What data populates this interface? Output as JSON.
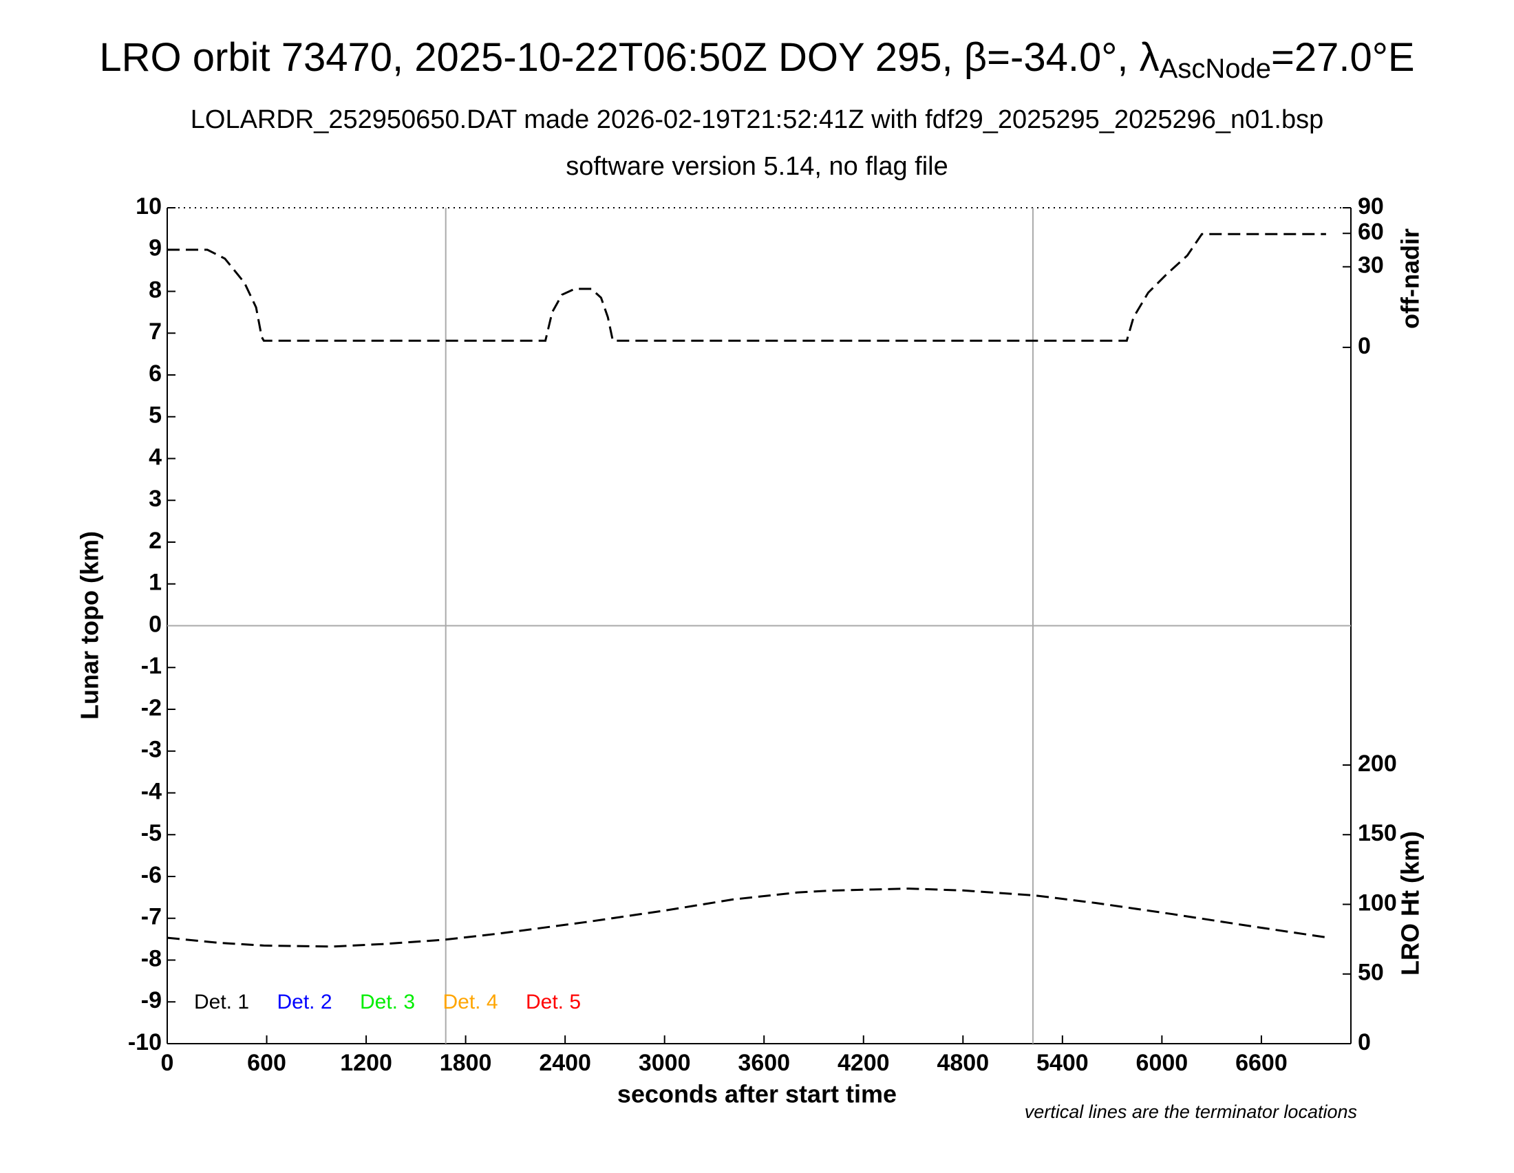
{
  "chart_data": {
    "type": "line",
    "title": "LRO orbit 73470, 2025-10-22T06:50Z DOY 295, β=-34.0°, λ",
    "title_subscript": "AscNode",
    "title_end": "=27.0°E",
    "subtitle": "LOLARDR_252950650.DAT made 2026-02-19T21:52:41Z with fdf29_2025295_2025296_n01.bsp",
    "subtitle2": "software version 5.14, no flag file",
    "x_label": "seconds after start time",
    "y_label": "Lunar topo (km)",
    "y2_label": "off-nadir",
    "y3_label": "LRO Ht (km)",
    "footnote": "vertical lines are the terminator locations",
    "xlim": [
      0,
      7140
    ],
    "xticks": [
      0,
      600,
      1200,
      1800,
      2400,
      3000,
      3600,
      4200,
      4800,
      5400,
      6000,
      6600
    ],
    "ylim": [
      -10,
      10
    ],
    "yticks": [
      -10,
      -9,
      -8,
      -7,
      -6,
      -5,
      -4,
      -3,
      -2,
      -1,
      0,
      1,
      2,
      3,
      4,
      5,
      6,
      7,
      8,
      9,
      10
    ],
    "y2lim": [
      0,
      90
    ],
    "y2ticks": [
      0,
      30,
      60,
      90
    ],
    "y2scale": "sqrt",
    "y3lim": [
      0,
      600
    ],
    "y3ticks": [
      0,
      50,
      100,
      150,
      200
    ],
    "terminators": [
      1680,
      5222
    ],
    "detectors": [
      {
        "name": "Det. 1",
        "color": "#000000"
      },
      {
        "name": "Det. 2",
        "color": "#0000ff"
      },
      {
        "name": "Det. 3",
        "color": "#00ee00"
      },
      {
        "name": "Det. 4",
        "color": "#ffa500"
      },
      {
        "name": "Det. 5",
        "color": "#ff0000"
      }
    ],
    "series": [
      {
        "name": "off-nadir",
        "axis": "y2",
        "color": "#000000",
        "x": [
          0,
          242,
          348,
          466,
          536,
          570,
          583,
          1200,
          1800,
          2281,
          2322,
          2381,
          2458,
          2558,
          2617,
          2658,
          2688,
          3600,
          4800,
          5788,
          5829,
          5917,
          6035,
          6153,
          6241,
          6990
        ],
        "values": [
          44,
          44,
          36.4,
          19.2,
          7.4,
          0.5,
          0.2,
          0.2,
          0.2,
          0.2,
          5.7,
          12.8,
          15.8,
          15.8,
          11.4,
          4.2,
          0.2,
          0.2,
          0.2,
          0.2,
          4.2,
          13.8,
          25.4,
          38.9,
          59.2,
          59.2
        ]
      },
      {
        "name": "LRO Ht",
        "axis": "y3",
        "color": "#000000",
        "x": [
          0,
          300,
          583,
          996,
          1300,
          1673,
          2000,
          2528,
          3000,
          3412,
          3800,
          4002,
          4473,
          4800,
          5239,
          5600,
          6064,
          6500,
          7007
        ],
        "values": [
          76,
          72.5,
          70.4,
          69.7,
          71.5,
          74.6,
          79,
          87.3,
          95.5,
          103.5,
          108.5,
          109.9,
          111.3,
          110,
          106.3,
          101,
          93,
          85,
          76
        ]
      }
    ]
  }
}
